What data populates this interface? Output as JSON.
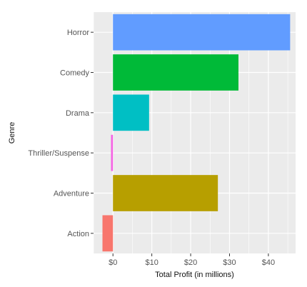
{
  "chart_data": {
    "type": "bar",
    "orientation": "horizontal",
    "categories": [
      "Action",
      "Adventure",
      "Thriller/Suspense",
      "Drama",
      "Comedy",
      "Horror"
    ],
    "values": [
      -2.7,
      27.0,
      -0.5,
      9.3,
      32.3,
      45.6
    ],
    "colors": [
      "#F8766D",
      "#B79F00",
      "#F564E3",
      "#00BFC4",
      "#00BA38",
      "#619CFF"
    ],
    "xlabel": "Total Profit (in millions)",
    "ylabel": "Genre",
    "xlim": [
      -5,
      47
    ],
    "xticks": [
      0,
      10,
      20,
      30,
      40
    ],
    "xtick_labels": [
      "$0",
      "$10",
      "$20",
      "$30",
      "$40"
    ],
    "grid": true,
    "panel_background": "#EBEBEB",
    "grid_color": "#FFFFFF"
  }
}
